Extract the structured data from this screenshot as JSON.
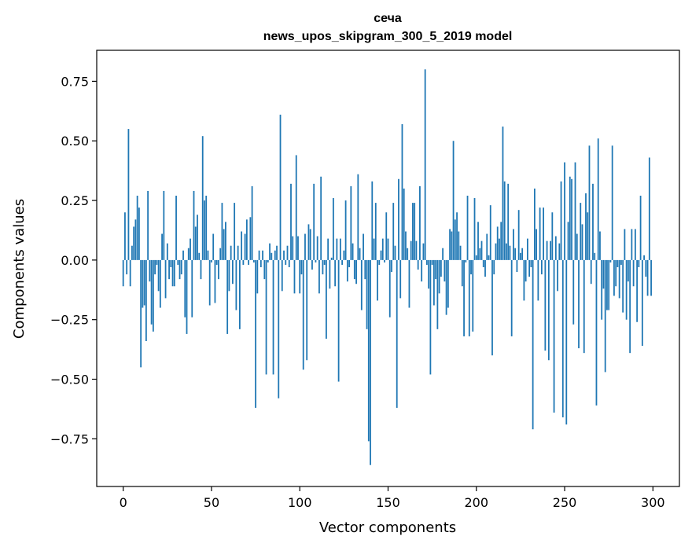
{
  "chart_data": {
    "type": "bar",
    "title": "сеча",
    "subtitle": "news_upos_skipgram_300_5_2019 model",
    "xlabel": "Vector components",
    "ylabel": "Components values",
    "xlim": [
      -15,
      315
    ],
    "ylim": [
      -0.95,
      0.88
    ],
    "x_ticks": [
      0,
      50,
      100,
      150,
      200,
      250,
      300
    ],
    "x_tick_labels": [
      "0",
      "50",
      "100",
      "150",
      "200",
      "250",
      "300"
    ],
    "y_ticks": [
      0.75,
      0.5,
      0.25,
      0.0,
      -0.25,
      -0.5,
      -0.75
    ],
    "y_tick_labels": [
      "0.75",
      "0.50",
      "0.25",
      "0.00",
      "−0.25",
      "−0.50",
      "−0.75"
    ],
    "bar_color": "#1f77b4",
    "grid": false,
    "values": [
      -0.11,
      0.2,
      -0.06,
      0.55,
      -0.11,
      0.06,
      0.14,
      0.17,
      0.27,
      0.22,
      -0.45,
      -0.2,
      -0.19,
      -0.34,
      0.29,
      -0.09,
      -0.27,
      -0.3,
      -0.06,
      -0.02,
      -0.13,
      -0.2,
      0.11,
      0.29,
      -0.16,
      0.07,
      -0.08,
      -0.03,
      -0.11,
      -0.11,
      0.27,
      -0.02,
      -0.08,
      -0.06,
      0.04,
      -0.24,
      -0.31,
      0.05,
      0.09,
      -0.24,
      0.29,
      0.14,
      0.19,
      0.03,
      -0.08,
      0.52,
      0.25,
      0.27,
      0.04,
      -0.19,
      -0.01,
      0.11,
      -0.18,
      -0.02,
      -0.08,
      0.05,
      0.24,
      0.13,
      0.16,
      -0.31,
      -0.13,
      0.06,
      -0.1,
      0.24,
      -0.21,
      0.06,
      -0.29,
      0.12,
      -0.02,
      0.11,
      0.17,
      -0.02,
      0.18,
      0.31,
      -0.01,
      -0.62,
      -0.14,
      0.04,
      -0.03,
      0.04,
      -0.08,
      -0.48,
      -0.01,
      0.07,
      0.03,
      -0.48,
      0.04,
      0.06,
      -0.58,
      0.61,
      -0.13,
      0.04,
      -0.02,
      0.06,
      -0.03,
      0.32,
      0.1,
      -0.14,
      0.44,
      0.1,
      -0.14,
      -0.06,
      -0.46,
      0.11,
      -0.42,
      0.15,
      0.13,
      -0.04,
      0.32,
      -0.01,
      0.1,
      -0.14,
      0.35,
      -0.06,
      -0.02,
      -0.33,
      0.09,
      -0.12,
      0.01,
      0.26,
      -0.11,
      0.09,
      -0.51,
      0.09,
      -0.02,
      0.04,
      0.25,
      -0.09,
      -0.03,
      0.31,
      0.07,
      -0.08,
      -0.1,
      0.36,
      0.05,
      -0.21,
      0.11,
      -0.08,
      -0.29,
      -0.76,
      -0.86,
      0.33,
      0.09,
      0.24,
      -0.17,
      -0.02,
      0.04,
      0.09,
      -0.01,
      0.2,
      0.09,
      -0.24,
      -0.05,
      0.24,
      0.06,
      -0.62,
      0.34,
      -0.16,
      0.57,
      0.3,
      0.12,
      0.05,
      -0.2,
      0.08,
      0.24,
      0.24,
      0.08,
      -0.04,
      0.31,
      -0.09,
      0.07,
      0.8,
      -0.02,
      -0.12,
      -0.48,
      -0.02,
      -0.19,
      -0.08,
      -0.29,
      -0.14,
      -0.07,
      0.05,
      -0.09,
      -0.23,
      -0.2,
      0.13,
      0.12,
      0.5,
      0.17,
      0.2,
      0.12,
      0.06,
      -0.11,
      -0.32,
      -0.01,
      0.27,
      -0.32,
      -0.06,
      -0.3,
      0.26,
      0.02,
      0.16,
      0.05,
      0.08,
      -0.03,
      -0.07,
      0.11,
      0.02,
      0.23,
      -0.4,
      -0.06,
      0.07,
      0.14,
      0.09,
      0.16,
      0.56,
      0.33,
      0.07,
      0.32,
      0.06,
      -0.32,
      0.13,
      0.05,
      -0.05,
      0.21,
      0.03,
      0.05,
      -0.17,
      -0.09,
      0.09,
      -0.07,
      -0.03,
      -0.71,
      0.3,
      0.13,
      -0.17,
      0.22,
      -0.06,
      0.22,
      -0.38,
      0.08,
      -0.42,
      0.08,
      0.2,
      -0.64,
      0.1,
      -0.13,
      0.07,
      0.33,
      -0.66,
      0.41,
      -0.69,
      0.16,
      0.35,
      0.34,
      -0.27,
      0.41,
      0.11,
      -0.37,
      0.24,
      0.15,
      -0.39,
      0.28,
      0.2,
      0.48,
      -0.1,
      0.32,
      0.03,
      -0.61,
      0.51,
      0.12,
      -0.25,
      -0.12,
      -0.47,
      -0.21,
      -0.21,
      -0.01,
      0.48,
      -0.15,
      -0.11,
      -0.03,
      -0.16,
      -0.02,
      -0.22,
      0.13,
      -0.25,
      -0.09,
      -0.39,
      0.13,
      -0.11,
      0.13,
      -0.26,
      -0.03,
      0.27,
      -0.36,
      0.02,
      -0.07,
      -0.15,
      0.43,
      -0.15
    ]
  }
}
